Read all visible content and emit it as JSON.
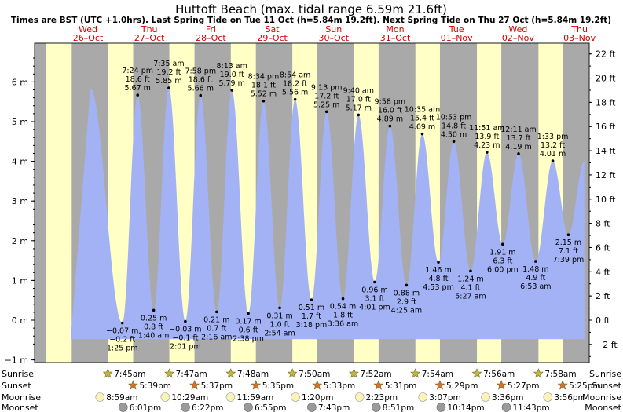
{
  "title": "Huttoft Beach (max. tidal range 6.59m 21.6ft)",
  "subtitle": "Times are BST (UTC +1.0hrs). Last Spring Tide on Tue 11 Oct (h=5.84m 19.2ft). Next Spring Tide on Thu 27 Oct (h=5.84m 19.2ft)",
  "colors": {
    "water": "#a3b2f5",
    "day": "#ffffc6",
    "night": "#a9a9a9",
    "day_label": "#d40000",
    "border": "#1a1a1a"
  },
  "days": [
    {
      "dow": "Wed",
      "date": "26–Oct"
    },
    {
      "dow": "Thu",
      "date": "27–Oct"
    },
    {
      "dow": "Fri",
      "date": "28–Oct"
    },
    {
      "dow": "Sat",
      "date": "29–Oct"
    },
    {
      "dow": "Sun",
      "date": "30–Oct"
    },
    {
      "dow": "Mon",
      "date": "31–Oct"
    },
    {
      "dow": "Tue",
      "date": "01–Nov"
    },
    {
      "dow": "Wed",
      "date": "02–Nov"
    },
    {
      "dow": "Thu",
      "date": "03–Nov"
    }
  ],
  "left_axis": {
    "unit": "m",
    "ticks": [
      -1,
      0,
      1,
      2,
      3,
      4,
      5,
      6
    ],
    "labels": [
      "−1 m",
      "0 m",
      "1 m",
      "2 m",
      "3 m",
      "4 m",
      "5 m",
      "6 m"
    ]
  },
  "right_axis": {
    "unit": "ft",
    "ticks": [
      -2,
      0,
      2,
      4,
      6,
      8,
      10,
      12,
      14,
      16,
      18,
      20,
      22
    ],
    "labels": [
      "−2 ft",
      "0 ft",
      "2 ft",
      "4 ft",
      "6 ft",
      "8 ft",
      "10 ft",
      "12 ft",
      "14 ft",
      "16 ft",
      "18 ft",
      "20 ft",
      "22 ft"
    ]
  },
  "chart_data": {
    "type": "area",
    "title": "Huttoft Beach (max. tidal range 6.59m 21.6ft)",
    "x_unit": "days from midnight 26 Oct (BST)",
    "y_unit": "m",
    "ylim_m": [
      -1.1,
      6.9
    ],
    "xlim_days": [
      -1,
      9
    ],
    "tides": [
      {
        "day": 0,
        "time": "1:25 pm",
        "m": "−0.07 m",
        "ft": "−0.2 ft",
        "h": -0.07,
        "type": "low"
      },
      {
        "day": 0,
        "time": "7:24 pm",
        "m": "5.67 m",
        "ft": "18.6 ft",
        "h": 5.67,
        "type": "high"
      },
      {
        "day": 1,
        "time": "1:40 am",
        "m": "0.25 m",
        "ft": "0.8 ft",
        "h": 0.25,
        "type": "low"
      },
      {
        "day": 1,
        "time": "7:35 am",
        "m": "5.85 m",
        "ft": "19.2 ft",
        "h": 5.85,
        "type": "high"
      },
      {
        "day": 1,
        "time": "2:01 pm",
        "m": "−0.03 m",
        "ft": "−0.1 ft",
        "h": -0.03,
        "type": "low"
      },
      {
        "day": 1,
        "time": "7:58 pm",
        "m": "5.66 m",
        "ft": "18.6 ft",
        "h": 5.66,
        "type": "high"
      },
      {
        "day": 2,
        "time": "2:16 am",
        "m": "0.21 m",
        "ft": "0.7 ft",
        "h": 0.21,
        "type": "low"
      },
      {
        "day": 2,
        "time": "8:13 am",
        "m": "5.79 m",
        "ft": "19.0 ft",
        "h": 5.79,
        "type": "high"
      },
      {
        "day": 2,
        "time": "2:38 pm",
        "m": "0.17 m",
        "ft": "0.6 ft",
        "h": 0.17,
        "type": "low"
      },
      {
        "day": 2,
        "time": "8:34 pm",
        "m": "5.52 m",
        "ft": "18.1 ft",
        "h": 5.52,
        "type": "high"
      },
      {
        "day": 3,
        "time": "2:54 am",
        "m": "0.31 m",
        "ft": "1.0 ft",
        "h": 0.31,
        "type": "low"
      },
      {
        "day": 3,
        "time": "8:54 am",
        "m": "5.56 m",
        "ft": "18.2 ft",
        "h": 5.56,
        "type": "high"
      },
      {
        "day": 3,
        "time": "3:18 pm",
        "m": "0.51 m",
        "ft": "1.7 ft",
        "h": 0.51,
        "type": "low"
      },
      {
        "day": 3,
        "time": "9:13 pm",
        "m": "5.25 m",
        "ft": "17.2 ft",
        "h": 5.25,
        "type": "high"
      },
      {
        "day": 4,
        "time": "3:36 am",
        "m": "0.54 m",
        "ft": "1.8 ft",
        "h": 0.54,
        "type": "low"
      },
      {
        "day": 4,
        "time": "9:40 am",
        "m": "5.17 m",
        "ft": "17.0 ft",
        "h": 5.17,
        "type": "high"
      },
      {
        "day": 4,
        "time": "4:01 pm",
        "m": "0.96 m",
        "ft": "3.1 ft",
        "h": 0.96,
        "type": "low"
      },
      {
        "day": 4,
        "time": "9:58 pm",
        "m": "4.89 m",
        "ft": "16.0 ft",
        "h": 4.89,
        "type": "high"
      },
      {
        "day": 5,
        "time": "4:25 am",
        "m": "0.88 m",
        "ft": "2.9 ft",
        "h": 0.88,
        "type": "low"
      },
      {
        "day": 5,
        "time": "10:35 am",
        "m": "4.69 m",
        "ft": "15.4 ft",
        "h": 4.69,
        "type": "high"
      },
      {
        "day": 5,
        "time": "4:53 pm",
        "m": "1.46 m",
        "ft": "4.8 ft",
        "h": 1.46,
        "type": "low"
      },
      {
        "day": 5,
        "time": "10:53 pm",
        "m": "4.50 m",
        "ft": "14.8 ft",
        "h": 4.5,
        "type": "high"
      },
      {
        "day": 6,
        "time": "5:27 am",
        "m": "1.24 m",
        "ft": "4.1 ft",
        "h": 1.24,
        "type": "low"
      },
      {
        "day": 6,
        "time": "11:51 am",
        "m": "4.23 m",
        "ft": "13.9 ft",
        "h": 4.23,
        "type": "high"
      },
      {
        "day": 6,
        "time": "6:00 pm",
        "m": "1.91 m",
        "ft": "6.3 ft",
        "h": 1.91,
        "type": "low"
      },
      {
        "day": 7,
        "time": "12:11 am",
        "m": "4.19 m",
        "ft": "13.7 ft",
        "h": 4.19,
        "type": "high"
      },
      {
        "day": 7,
        "time": "6:53 am",
        "m": "1.48 m",
        "ft": "4.9 ft",
        "h": 1.48,
        "type": "low"
      },
      {
        "day": 7,
        "time": "1:33 pm",
        "m": "4.01 m",
        "ft": "13.2 ft",
        "h": 4.01,
        "type": "high"
      },
      {
        "day": 7,
        "time": "7:39 pm",
        "m": "2.15 m",
        "ft": "7.1 ft",
        "h": 2.15,
        "type": "low"
      }
    ]
  },
  "sun_moon": {
    "row_labels": [
      "Sunrise",
      "Sunset",
      "Moonrise",
      "Moonset"
    ],
    "sunrise": [
      "7:45am",
      "7:47am",
      "7:48am",
      "7:50am",
      "7:52am",
      "7:54am",
      "7:56am",
      "7:58am"
    ],
    "sunset": [
      "5:39pm",
      "5:37pm",
      "5:35pm",
      "5:33pm",
      "5:31pm",
      "5:29pm",
      "5:27pm",
      "5:25pm"
    ],
    "moonrise": [
      "8:59am",
      "10:29am",
      "11:59am",
      "1:20pm",
      "2:23pm",
      "3:07pm",
      "3:36pm",
      "3:56pm"
    ],
    "moonset": [
      "6:01pm",
      "6:22pm",
      "6:55pm",
      "7:43pm",
      "8:51pm",
      "10:14pm",
      "11:43pm",
      ""
    ]
  }
}
